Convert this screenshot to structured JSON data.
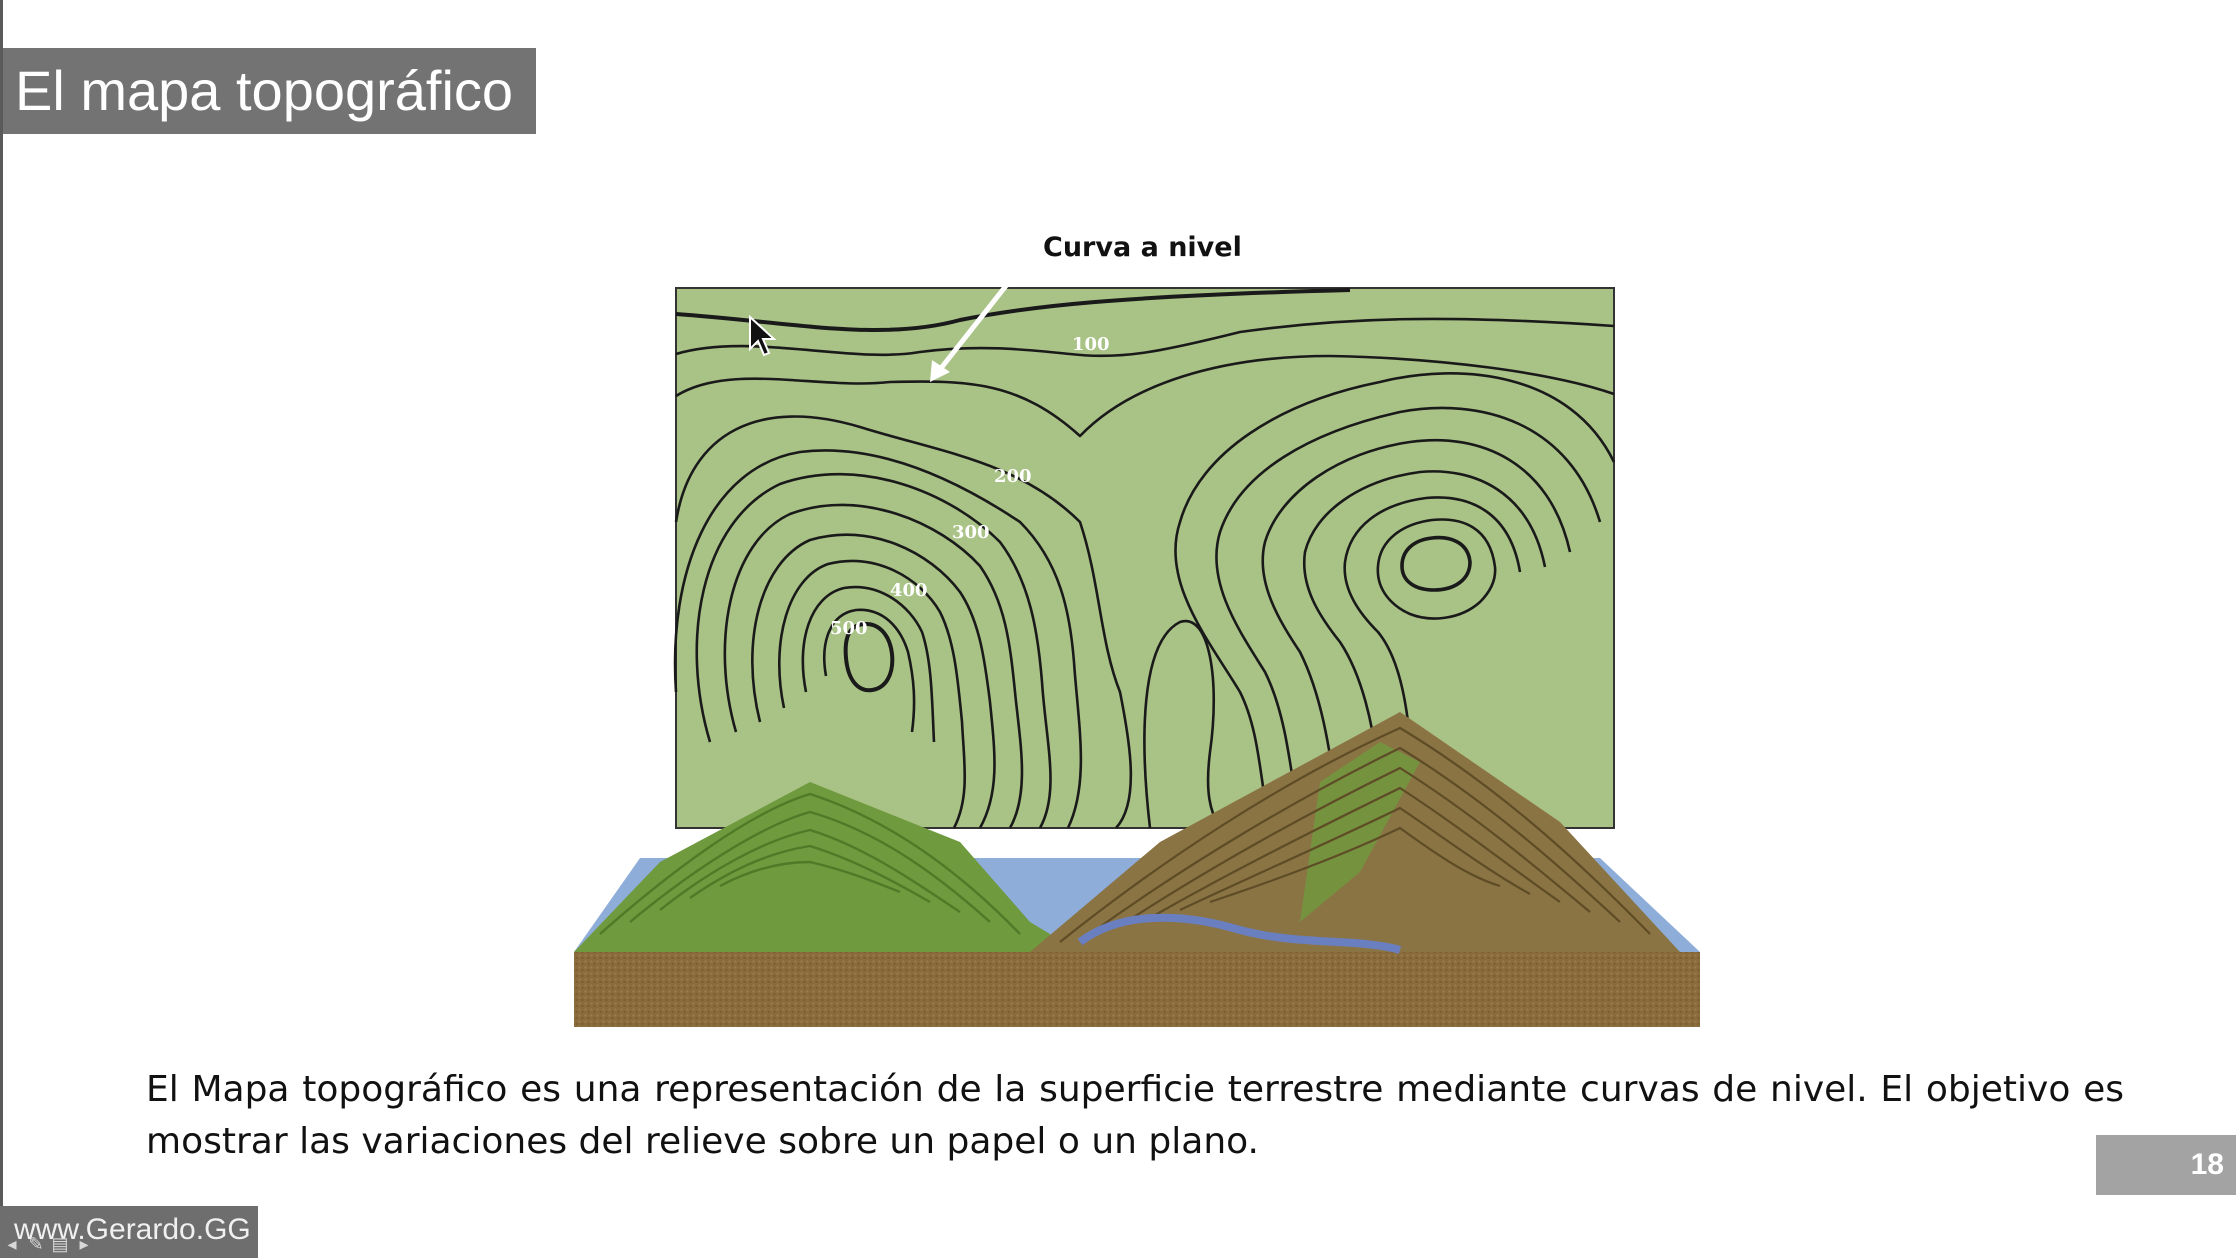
{
  "slide": {
    "title": "El mapa topográfico",
    "callout_label": "Curva a nivel",
    "contour_labels": [
      "100",
      "200",
      "300",
      "400",
      "500"
    ],
    "description": "El Mapa topográfico es una representación de la superficie terrestre mediante curvas de nivel. El objetivo es mostrar las variaciones del relieve sobre un papel o un plano.",
    "page_number": "18",
    "watermark": "www.Gerardo.GG"
  },
  "colors": {
    "title_bg": "#737373",
    "map_green": "#a9c286",
    "contour_line": "#1a1a1a",
    "soil": "#8a6b3c",
    "terrain_green": "#6f9a3e",
    "water": "#8f8fd0",
    "page_badge_bg": "#a3a3a3"
  },
  "icons": [
    "mouse-cursor-icon",
    "prev-slide-icon",
    "pen-icon",
    "menu-icon",
    "next-slide-icon"
  ]
}
